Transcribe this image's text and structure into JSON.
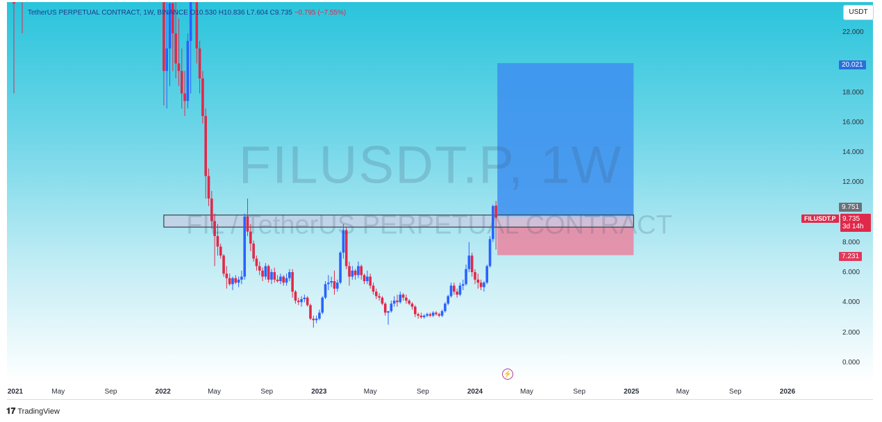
{
  "header": {
    "legend_text": "TetherUS PERPETUAL CONTRACT, 1W, BINANCE  O10.530  H10.836  L7.604  C9.735",
    "legend_change": "−0.795 (−7.55%)",
    "currency": "USDT"
  },
  "watermark": {
    "symbol": "FILUSDT.P, 1W",
    "description": "FIL / TetherUS PERPETUAL CONTRACT"
  },
  "price_labels": {
    "target": "20.021",
    "top": "9.751",
    "symbol": "FILUSDT.P",
    "price": "9.735",
    "countdown": "3d 14h",
    "stop": "7.231"
  },
  "brand": "TradingView",
  "colors": {
    "up": "#2962ff",
    "down": "#e0294a",
    "target_zone": "#3d8ff0",
    "stop_zone": "#e88aa4",
    "zone_box": "#c8cde6"
  },
  "chart_data": {
    "type": "candlestick",
    "symbol": "FILUSDT.P",
    "interval": "1W",
    "exchange": "BINANCE",
    "ylim": [
      0,
      24
    ],
    "y_ticks": [
      "22.000",
      "18.000",
      "16.000",
      "14.000",
      "12.000",
      "8.000",
      "6.000",
      "4.000",
      "2.000",
      "0.000"
    ],
    "x_ticks": [
      {
        "label": "2021",
        "x": "2021-01",
        "major": true
      },
      {
        "label": "May",
        "x": "2021-05",
        "major": false
      },
      {
        "label": "Sep",
        "x": "2021-09",
        "major": false
      },
      {
        "label": "2022",
        "x": "2022-01",
        "major": true
      },
      {
        "label": "May",
        "x": "2022-05",
        "major": false
      },
      {
        "label": "Sep",
        "x": "2022-09",
        "major": false
      },
      {
        "label": "2023",
        "x": "2023-01",
        "major": true
      },
      {
        "label": "May",
        "x": "2023-05",
        "major": false
      },
      {
        "label": "Sep",
        "x": "2023-09",
        "major": false
      },
      {
        "label": "2024",
        "x": "2024-01",
        "major": true
      },
      {
        "label": "May",
        "x": "2024-05",
        "major": false
      },
      {
        "label": "Sep",
        "x": "2024-09",
        "major": false
      },
      {
        "label": "2025",
        "x": "2025-01",
        "major": true
      },
      {
        "label": "May",
        "x": "2025-05",
        "major": false
      },
      {
        "label": "Sep",
        "x": "2025-09",
        "major": false
      },
      {
        "label": "2026",
        "x": "2026-01",
        "major": true
      }
    ],
    "candles": [
      {
        "t": "2022-01-03",
        "o": 30.0,
        "h": 31.0,
        "l": 17.2,
        "c": 19.5
      },
      {
        "t": "2022-01-10",
        "o": 19.5,
        "h": 31.0,
        "l": 17.0,
        "c": 21.0
      },
      {
        "t": "2022-01-17",
        "o": 21.0,
        "h": 30.0,
        "l": 18.5,
        "c": 24.0
      },
      {
        "t": "2022-01-24",
        "o": 24.0,
        "h": 27.0,
        "l": 19.5,
        "c": 22.0
      },
      {
        "t": "2022-01-31",
        "o": 22.0,
        "h": 25.0,
        "l": 19.0,
        "c": 20.0
      },
      {
        "t": "2022-02-07",
        "o": 20.0,
        "h": 23.0,
        "l": 18.5,
        "c": 19.5
      },
      {
        "t": "2022-02-14",
        "o": 19.5,
        "h": 21.0,
        "l": 17.0,
        "c": 18.0
      },
      {
        "t": "2022-02-21",
        "o": 18.0,
        "h": 19.5,
        "l": 16.5,
        "c": 17.5
      },
      {
        "t": "2022-02-28",
        "o": 17.5,
        "h": 22.0,
        "l": 17.0,
        "c": 21.5
      },
      {
        "t": "2022-03-07",
        "o": 21.5,
        "h": 31.0,
        "l": 18.0,
        "c": 31.0
      },
      {
        "t": "2022-03-14",
        "o": 31.0,
        "h": 32.0,
        "l": 24.0,
        "c": 26.0
      },
      {
        "t": "2022-03-21",
        "o": 26.0,
        "h": 26.5,
        "l": 20.0,
        "c": 21.0
      },
      {
        "t": "2022-03-28",
        "o": 21.0,
        "h": 21.5,
        "l": 18.0,
        "c": 19.0
      },
      {
        "t": "2022-04-04",
        "o": 19.0,
        "h": 19.5,
        "l": 16.0,
        "c": 16.5
      },
      {
        "t": "2022-04-11",
        "o": 16.5,
        "h": 17.0,
        "l": 11.0,
        "c": 12.5
      },
      {
        "t": "2022-04-18",
        "o": 12.5,
        "h": 13.0,
        "l": 10.5,
        "c": 11.0
      },
      {
        "t": "2022-04-25",
        "o": 11.0,
        "h": 11.5,
        "l": 9.0,
        "c": 9.5
      },
      {
        "t": "2022-05-02",
        "o": 9.5,
        "h": 10.0,
        "l": 6.5,
        "c": 8.5
      },
      {
        "t": "2022-05-09",
        "o": 8.5,
        "h": 9.3,
        "l": 7.2,
        "c": 7.8
      },
      {
        "t": "2022-05-16",
        "o": 7.8,
        "h": 8.0,
        "l": 7.0,
        "c": 7.2
      },
      {
        "t": "2022-05-23",
        "o": 7.2,
        "h": 7.3,
        "l": 5.8,
        "c": 6.0
      },
      {
        "t": "2022-05-30",
        "o": 6.0,
        "h": 6.5,
        "l": 5.0,
        "c": 5.7
      },
      {
        "t": "2022-06-06",
        "o": 5.7,
        "h": 6.0,
        "l": 5.2,
        "c": 5.3
      },
      {
        "t": "2022-06-13",
        "o": 5.3,
        "h": 5.8,
        "l": 4.9,
        "c": 5.7
      },
      {
        "t": "2022-06-20",
        "o": 5.7,
        "h": 5.9,
        "l": 5.3,
        "c": 5.4
      },
      {
        "t": "2022-06-27",
        "o": 5.4,
        "h": 5.8,
        "l": 5.1,
        "c": 5.6
      },
      {
        "t": "2022-07-04",
        "o": 5.6,
        "h": 6.2,
        "l": 5.3,
        "c": 5.8
      },
      {
        "t": "2022-07-11",
        "o": 5.8,
        "h": 10.0,
        "l": 5.6,
        "c": 9.8
      },
      {
        "t": "2022-07-18",
        "o": 9.8,
        "h": 11.0,
        "l": 8.5,
        "c": 8.8
      },
      {
        "t": "2022-07-25",
        "o": 8.8,
        "h": 9.3,
        "l": 7.5,
        "c": 8.0
      },
      {
        "t": "2022-08-01",
        "o": 8.0,
        "h": 8.2,
        "l": 6.8,
        "c": 7.0
      },
      {
        "t": "2022-08-08",
        "o": 7.0,
        "h": 7.2,
        "l": 6.2,
        "c": 6.5
      },
      {
        "t": "2022-08-15",
        "o": 6.5,
        "h": 6.8,
        "l": 5.9,
        "c": 6.2
      },
      {
        "t": "2022-08-22",
        "o": 6.2,
        "h": 6.4,
        "l": 5.5,
        "c": 5.8
      },
      {
        "t": "2022-08-29",
        "o": 5.8,
        "h": 6.7,
        "l": 5.6,
        "c": 6.5
      },
      {
        "t": "2022-09-05",
        "o": 6.5,
        "h": 6.6,
        "l": 5.4,
        "c": 5.6
      },
      {
        "t": "2022-09-12",
        "o": 5.6,
        "h": 6.3,
        "l": 5.3,
        "c": 6.1
      },
      {
        "t": "2022-09-19",
        "o": 6.1,
        "h": 6.4,
        "l": 5.4,
        "c": 5.6
      },
      {
        "t": "2022-09-26",
        "o": 5.6,
        "h": 5.9,
        "l": 5.4,
        "c": 5.5
      },
      {
        "t": "2022-10-03",
        "o": 5.5,
        "h": 6.0,
        "l": 5.3,
        "c": 5.8
      },
      {
        "t": "2022-10-10",
        "o": 5.8,
        "h": 5.9,
        "l": 5.2,
        "c": 5.4
      },
      {
        "t": "2022-10-17",
        "o": 5.4,
        "h": 6.0,
        "l": 5.2,
        "c": 5.7
      },
      {
        "t": "2022-10-24",
        "o": 5.7,
        "h": 6.3,
        "l": 5.5,
        "c": 6.1
      },
      {
        "t": "2022-10-31",
        "o": 6.1,
        "h": 6.3,
        "l": 4.4,
        "c": 4.8
      },
      {
        "t": "2022-11-07",
        "o": 4.8,
        "h": 4.9,
        "l": 4.0,
        "c": 4.2
      },
      {
        "t": "2022-11-14",
        "o": 4.2,
        "h": 4.4,
        "l": 3.9,
        "c": 4.1
      },
      {
        "t": "2022-11-21",
        "o": 4.1,
        "h": 4.5,
        "l": 3.8,
        "c": 4.3
      },
      {
        "t": "2022-11-28",
        "o": 4.3,
        "h": 4.6,
        "l": 4.1,
        "c": 4.4
      },
      {
        "t": "2022-12-05",
        "o": 4.4,
        "h": 4.5,
        "l": 3.8,
        "c": 3.9
      },
      {
        "t": "2022-12-12",
        "o": 3.9,
        "h": 4.0,
        "l": 2.9,
        "c": 3.0
      },
      {
        "t": "2022-12-19",
        "o": 3.0,
        "h": 3.2,
        "l": 2.4,
        "c": 2.9
      },
      {
        "t": "2022-12-26",
        "o": 2.9,
        "h": 3.2,
        "l": 2.7,
        "c": 3.0
      },
      {
        "t": "2023-01-02",
        "o": 3.0,
        "h": 3.6,
        "l": 2.9,
        "c": 3.4
      },
      {
        "t": "2023-01-09",
        "o": 3.4,
        "h": 4.5,
        "l": 3.3,
        "c": 4.4
      },
      {
        "t": "2023-01-16",
        "o": 4.4,
        "h": 5.5,
        "l": 4.3,
        "c": 5.3
      },
      {
        "t": "2023-01-23",
        "o": 5.3,
        "h": 5.9,
        "l": 4.9,
        "c": 5.4
      },
      {
        "t": "2023-01-30",
        "o": 5.4,
        "h": 5.8,
        "l": 5.1,
        "c": 5.5
      },
      {
        "t": "2023-02-06",
        "o": 5.5,
        "h": 6.2,
        "l": 4.6,
        "c": 5.0
      },
      {
        "t": "2023-02-13",
        "o": 5.0,
        "h": 5.6,
        "l": 4.8,
        "c": 5.4
      },
      {
        "t": "2023-02-20",
        "o": 5.4,
        "h": 7.5,
        "l": 5.3,
        "c": 7.4
      },
      {
        "t": "2023-02-27",
        "o": 7.4,
        "h": 9.3,
        "l": 7.0,
        "c": 8.9
      },
      {
        "t": "2023-03-06",
        "o": 8.9,
        "h": 9.1,
        "l": 6.3,
        "c": 6.5
      },
      {
        "t": "2023-03-13",
        "o": 6.5,
        "h": 6.8,
        "l": 5.2,
        "c": 5.8
      },
      {
        "t": "2023-03-20",
        "o": 5.8,
        "h": 6.5,
        "l": 5.6,
        "c": 6.2
      },
      {
        "t": "2023-03-27",
        "o": 6.2,
        "h": 6.3,
        "l": 5.6,
        "c": 5.9
      },
      {
        "t": "2023-04-03",
        "o": 5.9,
        "h": 6.8,
        "l": 5.7,
        "c": 6.5
      },
      {
        "t": "2023-04-10",
        "o": 6.5,
        "h": 6.6,
        "l": 5.6,
        "c": 5.9
      },
      {
        "t": "2023-04-17",
        "o": 5.9,
        "h": 6.0,
        "l": 5.3,
        "c": 5.5
      },
      {
        "t": "2023-04-24",
        "o": 5.5,
        "h": 6.2,
        "l": 5.3,
        "c": 5.8
      },
      {
        "t": "2023-05-01",
        "o": 5.8,
        "h": 6.0,
        "l": 5.0,
        "c": 5.2
      },
      {
        "t": "2023-05-08",
        "o": 5.2,
        "h": 5.4,
        "l": 4.6,
        "c": 4.8
      },
      {
        "t": "2023-05-15",
        "o": 4.8,
        "h": 5.0,
        "l": 4.3,
        "c": 4.5
      },
      {
        "t": "2023-05-22",
        "o": 4.5,
        "h": 4.7,
        "l": 4.2,
        "c": 4.4
      },
      {
        "t": "2023-05-29",
        "o": 4.4,
        "h": 4.5,
        "l": 3.9,
        "c": 4.0
      },
      {
        "t": "2023-06-05",
        "o": 4.0,
        "h": 4.1,
        "l": 3.2,
        "c": 3.4
      },
      {
        "t": "2023-06-12",
        "o": 3.4,
        "h": 3.5,
        "l": 2.6,
        "c": 3.5
      },
      {
        "t": "2023-06-19",
        "o": 3.5,
        "h": 4.2,
        "l": 3.4,
        "c": 4.0
      },
      {
        "t": "2023-06-26",
        "o": 4.0,
        "h": 4.5,
        "l": 3.8,
        "c": 4.2
      },
      {
        "t": "2023-07-03",
        "o": 4.2,
        "h": 4.6,
        "l": 3.8,
        "c": 4.1
      },
      {
        "t": "2023-07-10",
        "o": 4.1,
        "h": 4.8,
        "l": 4.0,
        "c": 4.6
      },
      {
        "t": "2023-07-17",
        "o": 4.6,
        "h": 4.7,
        "l": 4.2,
        "c": 4.4
      },
      {
        "t": "2023-07-24",
        "o": 4.4,
        "h": 4.6,
        "l": 4.0,
        "c": 4.2
      },
      {
        "t": "2023-07-31",
        "o": 4.2,
        "h": 4.3,
        "l": 3.9,
        "c": 4.0
      },
      {
        "t": "2023-08-07",
        "o": 4.0,
        "h": 4.1,
        "l": 3.6,
        "c": 3.8
      },
      {
        "t": "2023-08-14",
        "o": 3.8,
        "h": 3.9,
        "l": 3.1,
        "c": 3.3
      },
      {
        "t": "2023-08-21",
        "o": 3.3,
        "h": 3.4,
        "l": 3.0,
        "c": 3.2
      },
      {
        "t": "2023-08-28",
        "o": 3.2,
        "h": 3.4,
        "l": 3.0,
        "c": 3.1
      },
      {
        "t": "2023-09-04",
        "o": 3.1,
        "h": 3.3,
        "l": 3.0,
        "c": 3.2
      },
      {
        "t": "2023-09-11",
        "o": 3.2,
        "h": 3.4,
        "l": 3.1,
        "c": 3.3
      },
      {
        "t": "2023-09-18",
        "o": 3.3,
        "h": 3.4,
        "l": 3.1,
        "c": 3.2
      },
      {
        "t": "2023-09-25",
        "o": 3.2,
        "h": 3.5,
        "l": 3.1,
        "c": 3.4
      },
      {
        "t": "2023-10-02",
        "o": 3.4,
        "h": 3.5,
        "l": 3.2,
        "c": 3.3
      },
      {
        "t": "2023-10-09",
        "o": 3.3,
        "h": 3.4,
        "l": 3.1,
        "c": 3.2
      },
      {
        "t": "2023-10-16",
        "o": 3.2,
        "h": 3.6,
        "l": 3.1,
        "c": 3.5
      },
      {
        "t": "2023-10-23",
        "o": 3.5,
        "h": 4.1,
        "l": 3.4,
        "c": 4.0
      },
      {
        "t": "2023-10-30",
        "o": 4.0,
        "h": 4.6,
        "l": 3.9,
        "c": 4.5
      },
      {
        "t": "2023-11-06",
        "o": 4.5,
        "h": 5.4,
        "l": 4.4,
        "c": 5.2
      },
      {
        "t": "2023-11-13",
        "o": 5.2,
        "h": 5.4,
        "l": 4.6,
        "c": 4.8
      },
      {
        "t": "2023-11-20",
        "o": 4.8,
        "h": 5.0,
        "l": 4.4,
        "c": 4.6
      },
      {
        "t": "2023-11-27",
        "o": 4.6,
        "h": 5.4,
        "l": 4.5,
        "c": 5.2
      },
      {
        "t": "2023-12-04",
        "o": 5.2,
        "h": 5.6,
        "l": 4.9,
        "c": 5.3
      },
      {
        "t": "2023-12-11",
        "o": 5.3,
        "h": 6.6,
        "l": 5.2,
        "c": 6.3
      },
      {
        "t": "2023-12-18",
        "o": 6.3,
        "h": 8.1,
        "l": 6.1,
        "c": 7.2
      },
      {
        "t": "2023-12-25",
        "o": 7.2,
        "h": 7.4,
        "l": 5.8,
        "c": 6.1
      },
      {
        "t": "2024-01-01",
        "o": 6.1,
        "h": 6.3,
        "l": 5.3,
        "c": 5.6
      },
      {
        "t": "2024-01-08",
        "o": 5.6,
        "h": 6.0,
        "l": 5.0,
        "c": 5.4
      },
      {
        "t": "2024-01-15",
        "o": 5.4,
        "h": 5.6,
        "l": 4.9,
        "c": 5.1
      },
      {
        "t": "2024-01-22",
        "o": 5.1,
        "h": 5.5,
        "l": 4.8,
        "c": 5.4
      },
      {
        "t": "2024-01-29",
        "o": 5.4,
        "h": 6.6,
        "l": 5.3,
        "c": 6.5
      },
      {
        "t": "2024-02-05",
        "o": 6.5,
        "h": 8.5,
        "l": 6.4,
        "c": 8.3
      },
      {
        "t": "2024-02-12",
        "o": 8.3,
        "h": 10.6,
        "l": 8.1,
        "c": 10.5
      },
      {
        "t": "2024-02-19",
        "o": 10.53,
        "h": 10.836,
        "l": 7.604,
        "c": 9.735
      }
    ],
    "levels": {
      "target": 20.021,
      "entry_zone_top": 9.751,
      "entry_zone_bottom": 9.3,
      "last_price": 9.735,
      "stop": 7.231,
      "zone_box_top": 9.9,
      "zone_box_bottom": 9.1
    },
    "position_tool": {
      "x_start": "2024-02-19",
      "x_end": "2025-01-06"
    },
    "zone_box": {
      "x_start": "2022-01-03",
      "x_end": "2025-01-06"
    },
    "cut_off_candles_left_note": "left edge shows partial 2021 candles beyond the top"
  }
}
